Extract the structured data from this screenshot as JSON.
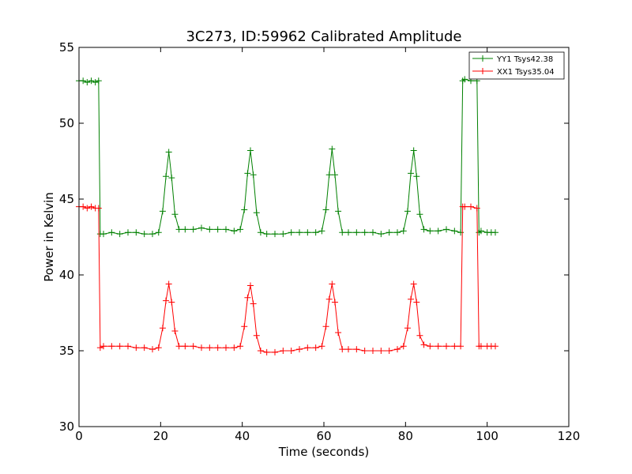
{
  "chart_data": {
    "type": "line",
    "title": "3C273, ID:59962 Calibrated Amplitude",
    "xlabel": "Time (seconds)",
    "ylabel": "Power in Kelvin",
    "xlim": [
      0,
      120
    ],
    "ylim": [
      30,
      55
    ],
    "xticks": [
      0,
      20,
      40,
      60,
      80,
      100,
      120
    ],
    "yticks": [
      30,
      35,
      40,
      45,
      50,
      55
    ],
    "xtick_labels": [
      "0",
      "20",
      "40",
      "60",
      "80",
      "100",
      "120"
    ],
    "ytick_labels": [
      "30",
      "35",
      "40",
      "45",
      "50",
      "55"
    ],
    "grid": false,
    "legend_position": "top-right",
    "marker": "+",
    "series": [
      {
        "name": "YY1 Tsys42.38",
        "color": "#008000",
        "x": [
          0,
          1,
          2,
          3,
          4,
          4.8,
          5.2,
          6,
          8,
          10,
          12,
          14,
          16,
          18,
          19.5,
          20.5,
          21.3,
          22,
          22.7,
          23.5,
          24.5,
          26,
          28,
          30,
          32,
          34,
          36,
          38,
          39.5,
          40.5,
          41.3,
          42,
          42.7,
          43.5,
          44.5,
          46,
          48,
          50,
          52,
          54,
          56,
          58,
          59.5,
          60.5,
          61.3,
          62,
          62.7,
          63.5,
          64.5,
          66,
          68,
          70,
          72,
          74,
          76,
          78,
          79.5,
          80.5,
          81.3,
          82,
          82.7,
          83.5,
          84.5,
          86,
          88,
          90,
          92,
          93.5,
          94,
          94.5,
          96,
          97.5,
          98,
          98.5,
          100,
          101,
          102
        ],
        "values": [
          52.8,
          52.8,
          52.7,
          52.8,
          52.7,
          52.8,
          42.7,
          42.7,
          42.8,
          42.7,
          42.8,
          42.8,
          42.7,
          42.7,
          42.8,
          44.2,
          46.5,
          48.1,
          46.4,
          44.0,
          43.0,
          43.0,
          43.0,
          43.1,
          43.0,
          43.0,
          43.0,
          42.9,
          43.0,
          44.3,
          46.7,
          48.2,
          46.6,
          44.1,
          42.8,
          42.7,
          42.7,
          42.7,
          42.8,
          42.8,
          42.8,
          42.8,
          42.9,
          44.3,
          46.6,
          48.3,
          46.6,
          44.2,
          42.8,
          42.8,
          42.8,
          42.8,
          42.8,
          42.7,
          42.8,
          42.8,
          42.9,
          44.2,
          46.7,
          48.2,
          46.5,
          44.0,
          43.0,
          42.9,
          42.9,
          43.0,
          42.9,
          42.8,
          52.8,
          52.9,
          52.8,
          52.8,
          42.8,
          42.9,
          42.8,
          42.8,
          42.8
        ]
      },
      {
        "name": "XX1 Tsys35.04",
        "color": "#ff0000",
        "x": [
          0,
          1,
          2,
          3,
          4,
          4.8,
          5.2,
          6,
          8,
          10,
          12,
          14,
          16,
          18,
          19.5,
          20.5,
          21.3,
          22,
          22.7,
          23.5,
          24.5,
          26,
          28,
          30,
          32,
          34,
          36,
          38,
          39.5,
          40.5,
          41.3,
          42,
          42.7,
          43.5,
          44.5,
          46,
          48,
          50,
          52,
          54,
          56,
          58,
          59.5,
          60.5,
          61.3,
          62,
          62.7,
          63.5,
          64.5,
          66,
          68,
          70,
          72,
          74,
          76,
          78,
          79.5,
          80.5,
          81.3,
          82,
          82.7,
          83.5,
          84.5,
          86,
          88,
          90,
          92,
          93.5,
          94,
          94.5,
          96,
          97.5,
          98,
          98.5,
          100,
          101,
          102
        ],
        "values": [
          44.5,
          44.5,
          44.4,
          44.5,
          44.4,
          44.4,
          35.2,
          35.3,
          35.3,
          35.3,
          35.3,
          35.2,
          35.2,
          35.1,
          35.2,
          36.5,
          38.3,
          39.4,
          38.2,
          36.3,
          35.3,
          35.3,
          35.3,
          35.2,
          35.2,
          35.2,
          35.2,
          35.2,
          35.3,
          36.6,
          38.5,
          39.3,
          38.1,
          36.0,
          35.0,
          34.9,
          34.9,
          35.0,
          35.0,
          35.1,
          35.2,
          35.2,
          35.3,
          36.6,
          38.4,
          39.4,
          38.2,
          36.2,
          35.1,
          35.1,
          35.1,
          35.0,
          35.0,
          35.0,
          35.0,
          35.1,
          35.3,
          36.5,
          38.4,
          39.4,
          38.2,
          36.0,
          35.4,
          35.3,
          35.3,
          35.3,
          35.3,
          35.3,
          44.5,
          44.5,
          44.5,
          44.4,
          35.3,
          35.3,
          35.3,
          35.3,
          35.3
        ]
      }
    ]
  }
}
